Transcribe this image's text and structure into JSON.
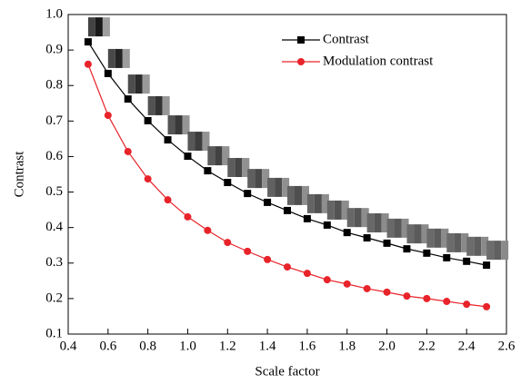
{
  "chart_data": {
    "type": "line",
    "x_label": "Scale factor",
    "y_label": "Contrast",
    "x": [
      0.5,
      0.6,
      0.7,
      0.8,
      0.9,
      1.0,
      1.1,
      1.2,
      1.3,
      1.4,
      1.5,
      1.6,
      1.7,
      1.8,
      1.9,
      2.0,
      2.1,
      2.2,
      2.3,
      2.4,
      2.5
    ],
    "series": [
      {
        "name": "Contrast",
        "color": "#000000",
        "marker": "square",
        "values": [
          0.923,
          0.834,
          0.762,
          0.701,
          0.647,
          0.601,
          0.56,
          0.527,
          0.496,
          0.471,
          0.448,
          0.425,
          0.407,
          0.386,
          0.371,
          0.356,
          0.34,
          0.328,
          0.315,
          0.305,
          0.294
        ]
      },
      {
        "name": "Modulation contrast",
        "color": "#e8232a",
        "marker": "circle",
        "values": [
          0.86,
          0.716,
          0.614,
          0.537,
          0.478,
          0.43,
          0.392,
          0.358,
          0.333,
          0.31,
          0.289,
          0.271,
          0.253,
          0.241,
          0.228,
          0.218,
          0.207,
          0.2,
          0.192,
          0.184,
          0.177
        ]
      }
    ],
    "xlim": [
      0.4,
      2.6
    ],
    "xticks": [
      0.4,
      0.6,
      0.8,
      {
        "value": 1,
        "label": "1.0"
      },
      1.2,
      1.4,
      1.6,
      1.8,
      {
        "value": 2,
        "label": "2.0"
      },
      2.2,
      2.4,
      2.6
    ],
    "ylim": [
      0.1,
      1
    ],
    "yticks": [
      0.1,
      0.2,
      0.3,
      0.4,
      0.5,
      0.6,
      0.7,
      0.8,
      0.9,
      {
        "value": 1,
        "label": "1.0"
      }
    ],
    "legend": "upper-right"
  }
}
